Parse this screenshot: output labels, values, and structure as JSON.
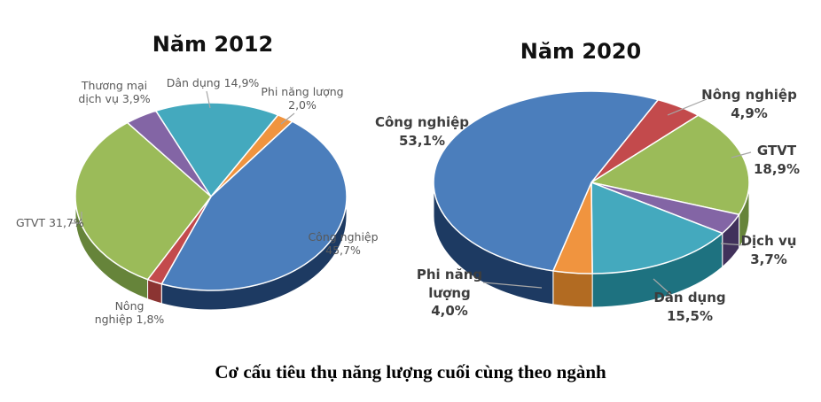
{
  "caption": "Cơ cấu tiêu thụ năng lượng cuối cùng theo ngành",
  "chart_data": [
    {
      "type": "pie",
      "title": "Năm 2012",
      "unit": "%",
      "start_angle": -24,
      "legend_position": "outside-callouts",
      "slices": [
        {
          "name": "Dân dụng",
          "value": 14.9,
          "display": [
            "Dân dụng 14,9%"
          ],
          "color": "#44A9BE",
          "side_color": "#1E7280"
        },
        {
          "name": "Phi năng lượng",
          "value": 2.0,
          "display": [
            "Phi năng lượng",
            "2,0%"
          ],
          "color": "#F0943F",
          "side_color": "#B26B22"
        },
        {
          "name": "Công nghiệp",
          "value": 45.7,
          "display": [
            "Công nghiệp",
            "45,7%"
          ],
          "color": "#4B7EBC",
          "side_color": "#1D3A62"
        },
        {
          "name": "Nông nghiệp",
          "value": 1.8,
          "display": [
            "Nông",
            "nghiệp 1,8%"
          ],
          "color": "#C34A4C",
          "side_color": "#8B3432"
        },
        {
          "name": "GTVT",
          "value": 31.7,
          "display": [
            "GTVT 31,7%"
          ],
          "color": "#9BBB59",
          "side_color": "#66843A"
        },
        {
          "name": "Thương mại dịch vụ",
          "value": 3.9,
          "display": [
            "Thương mại",
            "dịch vụ 3,9%"
          ],
          "color": "#8365A5",
          "side_color": "#4C3A67"
        }
      ]
    },
    {
      "type": "pie",
      "title": "Năm 2020",
      "unit": "%",
      "start_angle": 25,
      "legend_position": "outside-callouts",
      "slices": [
        {
          "name": "Nông nghiệp",
          "value": 4.9,
          "display": [
            "Nông nghiệp",
            "4,9%"
          ],
          "color": "#C34A4C",
          "side_color": "#8B3432"
        },
        {
          "name": "GTVT",
          "value": 18.9,
          "display": [
            "GTVT",
            "18,9%"
          ],
          "color": "#9BBB59",
          "side_color": "#66843A"
        },
        {
          "name": "Dịch vụ",
          "value": 3.7,
          "display": [
            "Dịch vụ",
            "3,7%"
          ],
          "color": "#8365A5",
          "side_color": "#41315B"
        },
        {
          "name": "Dân dụng",
          "value": 15.5,
          "display": [
            "Dân dụng",
            "15,5%"
          ],
          "color": "#44A9BE",
          "side_color": "#1E7280"
        },
        {
          "name": "Phi năng lượng",
          "value": 4.0,
          "display": [
            "Phi năng",
            "lượng",
            "4,0%"
          ],
          "color": "#F0943F",
          "side_color": "#B26B22"
        },
        {
          "name": "Công nghiệp",
          "value": 53.1,
          "display": [
            "Công nghiệp",
            "53,1%"
          ],
          "color": "#4B7EBC",
          "side_color": "#1D3A62"
        }
      ]
    }
  ]
}
